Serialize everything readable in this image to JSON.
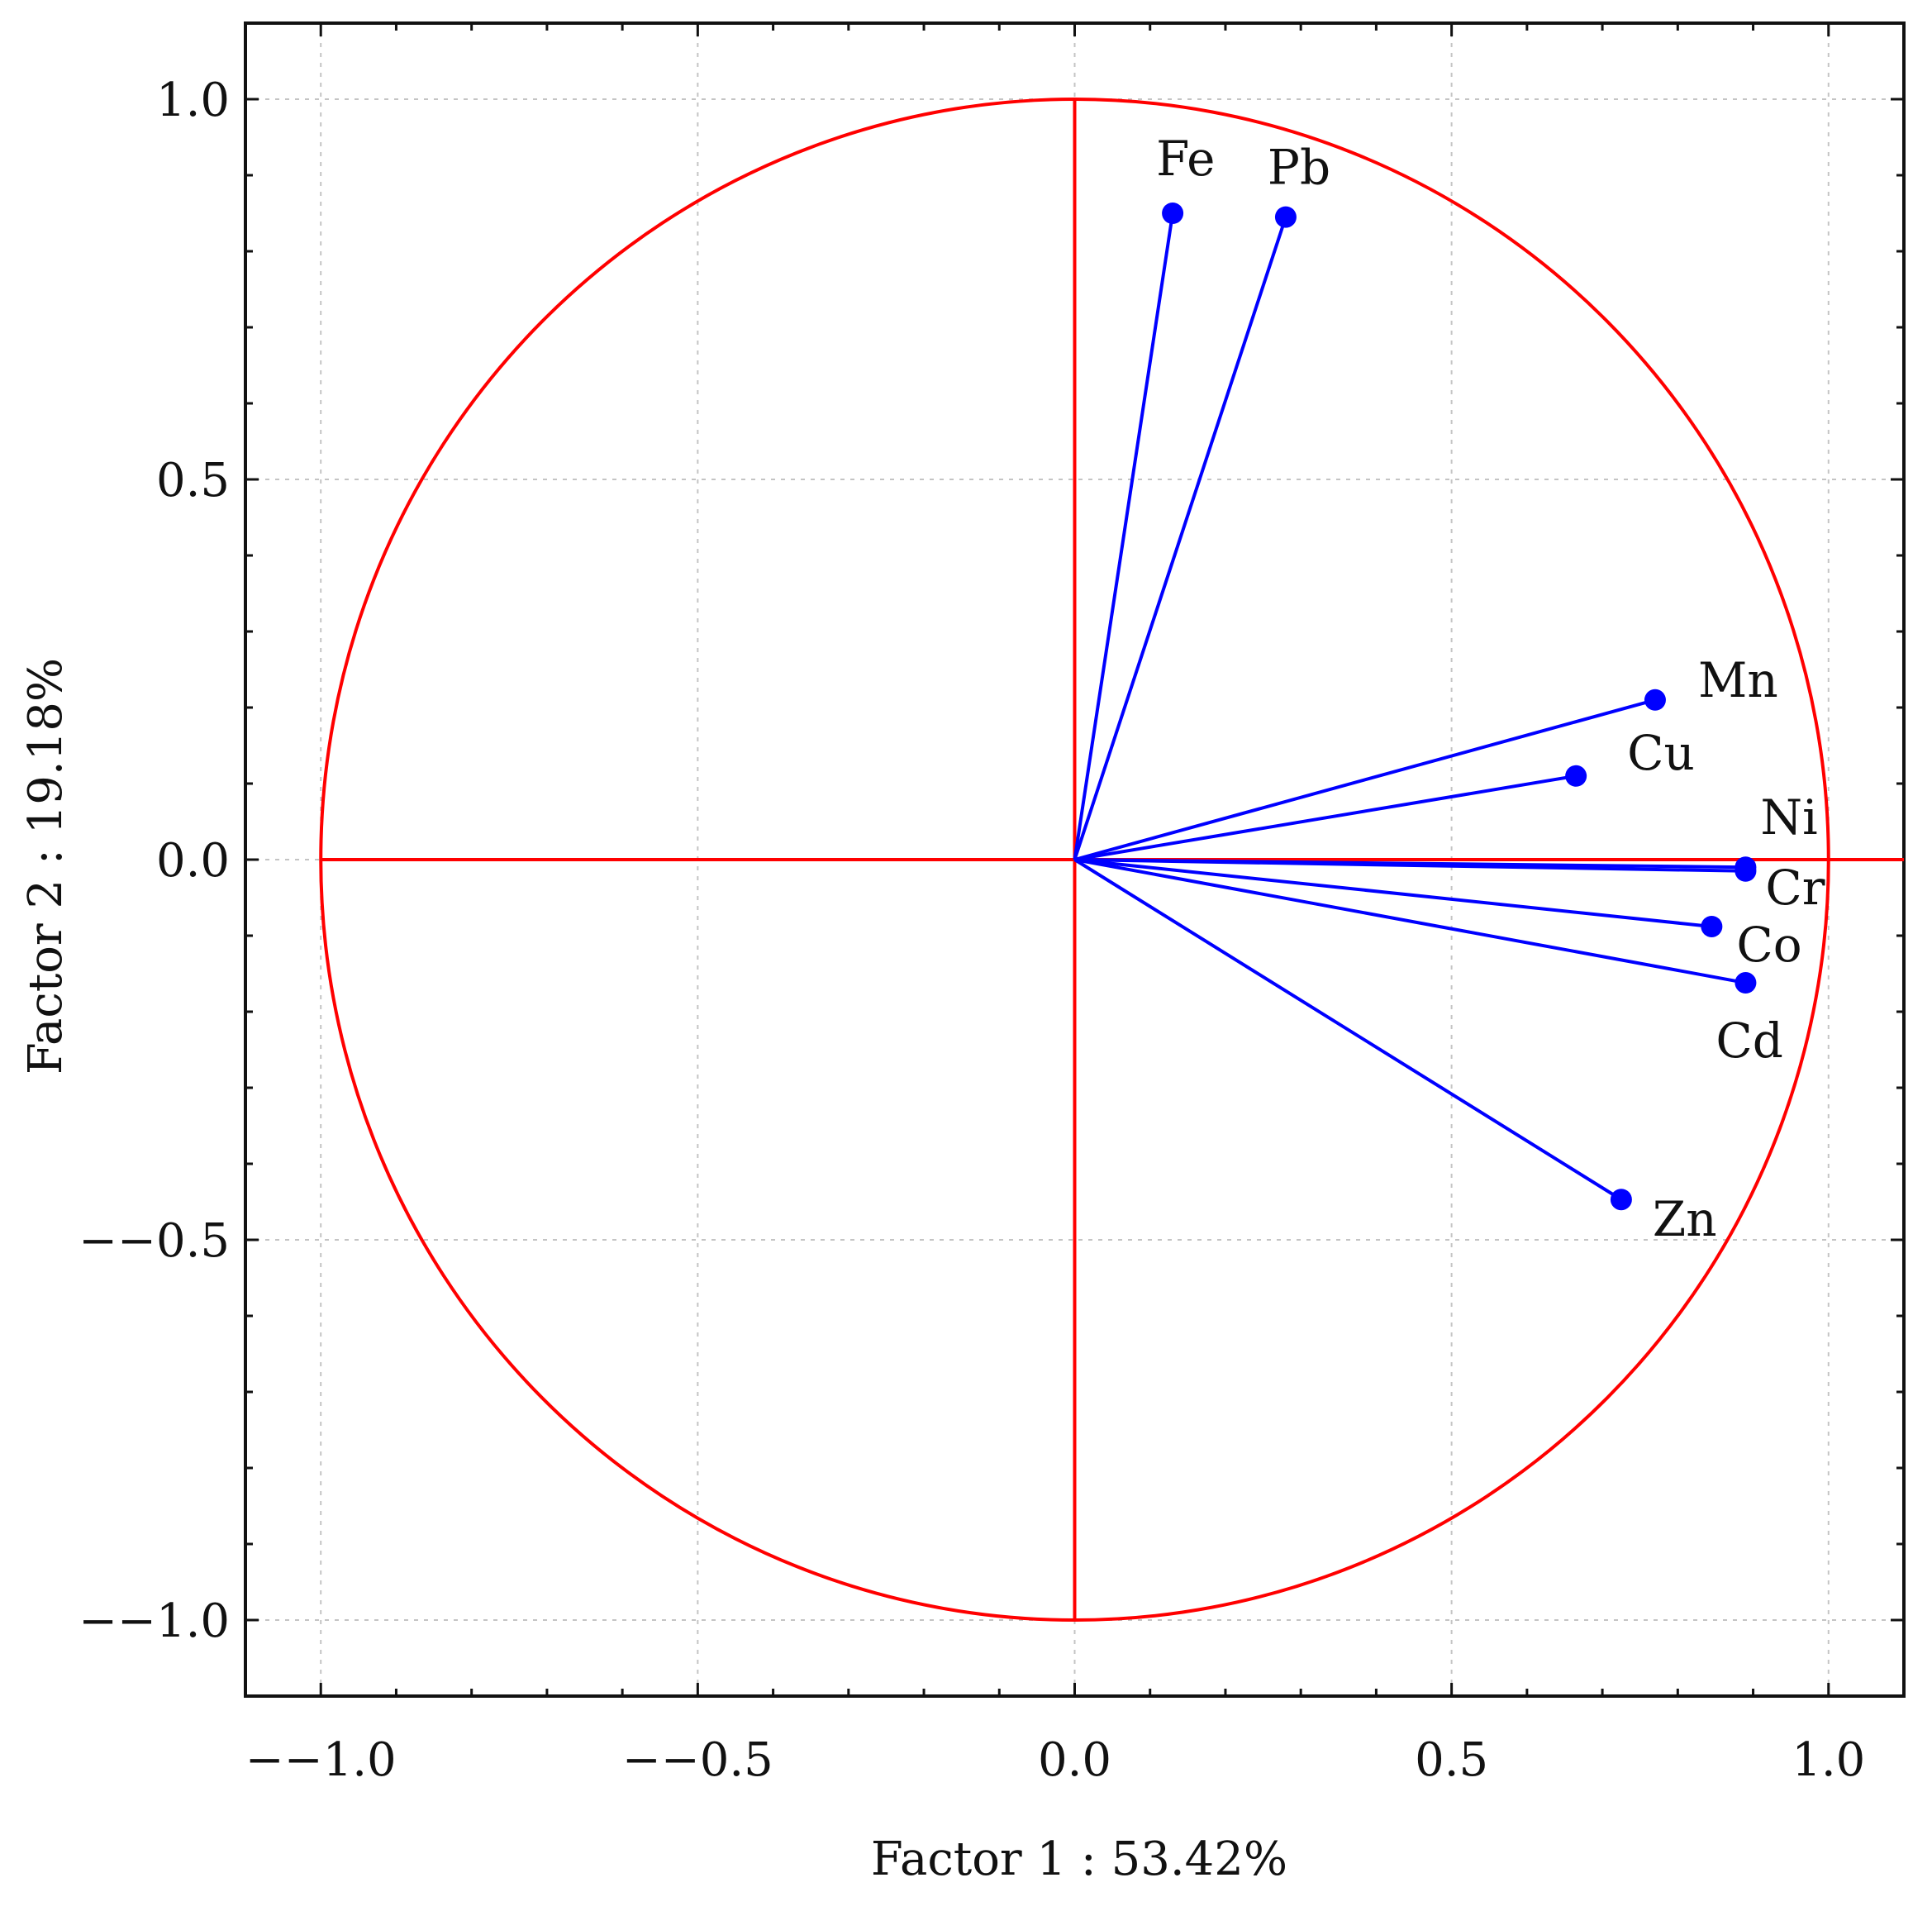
{
  "chart_data": {
    "type": "scatter",
    "subtype": "pca-correlation-circle",
    "title": "",
    "xlabel": "Factor 1 : 53.42%",
    "ylabel": "Factor 2 : 19.18%",
    "xlim": [
      -1.1,
      1.1
    ],
    "ylim": [
      -1.1,
      1.1
    ],
    "xticks": [
      -1.0,
      -0.5,
      0.0,
      0.5,
      1.0
    ],
    "yticks": [
      -1.0,
      -0.5,
      0.0,
      0.5,
      1.0
    ],
    "xtick_labels": [
      "−−1.0",
      "−−0.5",
      "0.0",
      "0.5",
      "1.0"
    ],
    "ytick_labels": [
      "−−1.0",
      "−−0.5",
      "0.0",
      "0.5",
      "1.0"
    ],
    "grid": true,
    "unit_circle_radius": 1.0,
    "colors": {
      "circle": "#ff0000",
      "vectors": "#0000ff",
      "frame": "#111111",
      "grid": "#c4c4c4"
    },
    "points": [
      {
        "name": "Fe",
        "x": 0.13,
        "y": 0.85
      },
      {
        "name": "Pb",
        "x": 0.28,
        "y": 0.845
      },
      {
        "name": "Mn",
        "x": 0.77,
        "y": 0.21
      },
      {
        "name": "Cu",
        "x": 0.665,
        "y": 0.11
      },
      {
        "name": "Ni",
        "x": 0.89,
        "y": -0.01
      },
      {
        "name": "Cr",
        "x": 0.89,
        "y": -0.015
      },
      {
        "name": "Co",
        "x": 0.845,
        "y": -0.088
      },
      {
        "name": "Cd",
        "x": 0.89,
        "y": -0.162
      },
      {
        "name": "Zn",
        "x": 0.725,
        "y": -0.447
      }
    ]
  }
}
